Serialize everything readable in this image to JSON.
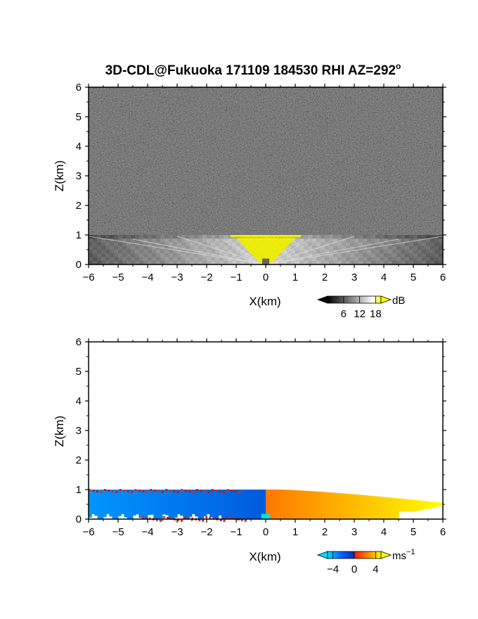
{
  "chart_data": [
    {
      "type": "heatmap",
      "title": "3D-CDL@Fukuoka 171109 184530 RHI AZ=292",
      "title_superscript": "o",
      "xlabel": "X(km)",
      "ylabel": "Z(km)",
      "xlim": [
        -6,
        6
      ],
      "ylim": [
        0,
        6
      ],
      "xticks": [
        "-6",
        "-5",
        "-4",
        "-3",
        "-2",
        "-1",
        "0",
        "1",
        "2",
        "3",
        "4",
        "5",
        "6"
      ],
      "yticks": [
        "0",
        "1",
        "2",
        "3",
        "4",
        "5",
        "6"
      ],
      "field": "SNR",
      "background_noise": "gray speckle everywhere",
      "echo_top_km": 1.0,
      "saturated_region": {
        "x": [
          -1.0,
          1.0
        ],
        "z": [
          0.0,
          1.0
        ],
        "color": "#ffff00"
      },
      "colorbar": {
        "unit": "dB",
        "ticks": [
          "6",
          "12",
          "18"
        ],
        "range": [
          0,
          20
        ],
        "colors": [
          "#000000",
          "#ffffff",
          "#ffff00"
        ]
      }
    },
    {
      "type": "heatmap",
      "xlabel": "X(km)",
      "ylabel": "Z(km)",
      "xlim": [
        -6,
        6
      ],
      "ylim": [
        0,
        6
      ],
      "xticks": [
        "-6",
        "-5",
        "-4",
        "-3",
        "-2",
        "-1",
        "0",
        "1",
        "2",
        "3",
        "4",
        "5",
        "6"
      ],
      "yticks": [
        "0",
        "1",
        "2",
        "3",
        "4",
        "5",
        "6"
      ],
      "field": "Doppler velocity",
      "layer_top_km": 1.0,
      "negative_side": {
        "x": [
          -6.0,
          0.0
        ],
        "velocity_approx": -3
      },
      "positive_side": {
        "x": [
          0.0,
          6.0
        ],
        "velocity_approx": 3
      },
      "colorbar": {
        "unit": "ms",
        "unit_superscript": "−1",
        "ticks": [
          "−4",
          "0",
          "4"
        ],
        "range": [
          -5,
          5
        ],
        "colors": [
          "#00e0ff",
          "#0060ff",
          "#0030c0",
          "#ff2000",
          "#ff8000",
          "#ffff00"
        ]
      }
    }
  ]
}
